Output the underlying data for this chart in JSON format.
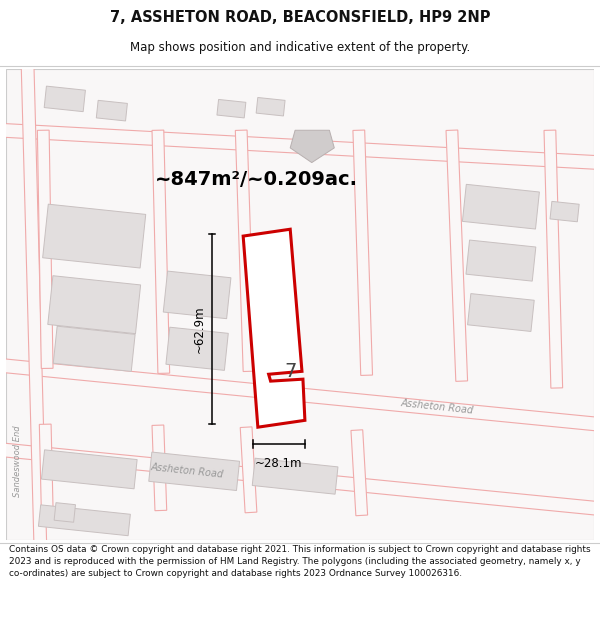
{
  "title_line1": "7, ASSHETON ROAD, BEACONSFIELD, HP9 2NP",
  "title_line2": "Map shows position and indicative extent of the property.",
  "area_text": "~847m²/~0.209ac.",
  "dim_height": "~62.9m",
  "dim_width": "~28.1m",
  "property_number": "7",
  "footer_text": "Contains OS data © Crown copyright and database right 2021. This information is subject to Crown copyright and database rights 2023 and is reproduced with the permission of HM Land Registry. The polygons (including the associated geometry, namely x, y co-ordinates) are subject to Crown copyright and database rights 2023 Ordnance Survey 100026316.",
  "map_bg": "#f9f7f7",
  "road_line_color": "#f0aaaa",
  "road_fill_color": "#f5eaea",
  "building_fill": "#e2dede",
  "building_stroke": "#c8c0c0",
  "property_fill": "#ffffff",
  "property_stroke": "#cc0000",
  "dim_color": "#111111",
  "title_color": "#111111",
  "footer_color": "#111111",
  "road_label_color": "#999999",
  "map_border_color": "#cccccc"
}
